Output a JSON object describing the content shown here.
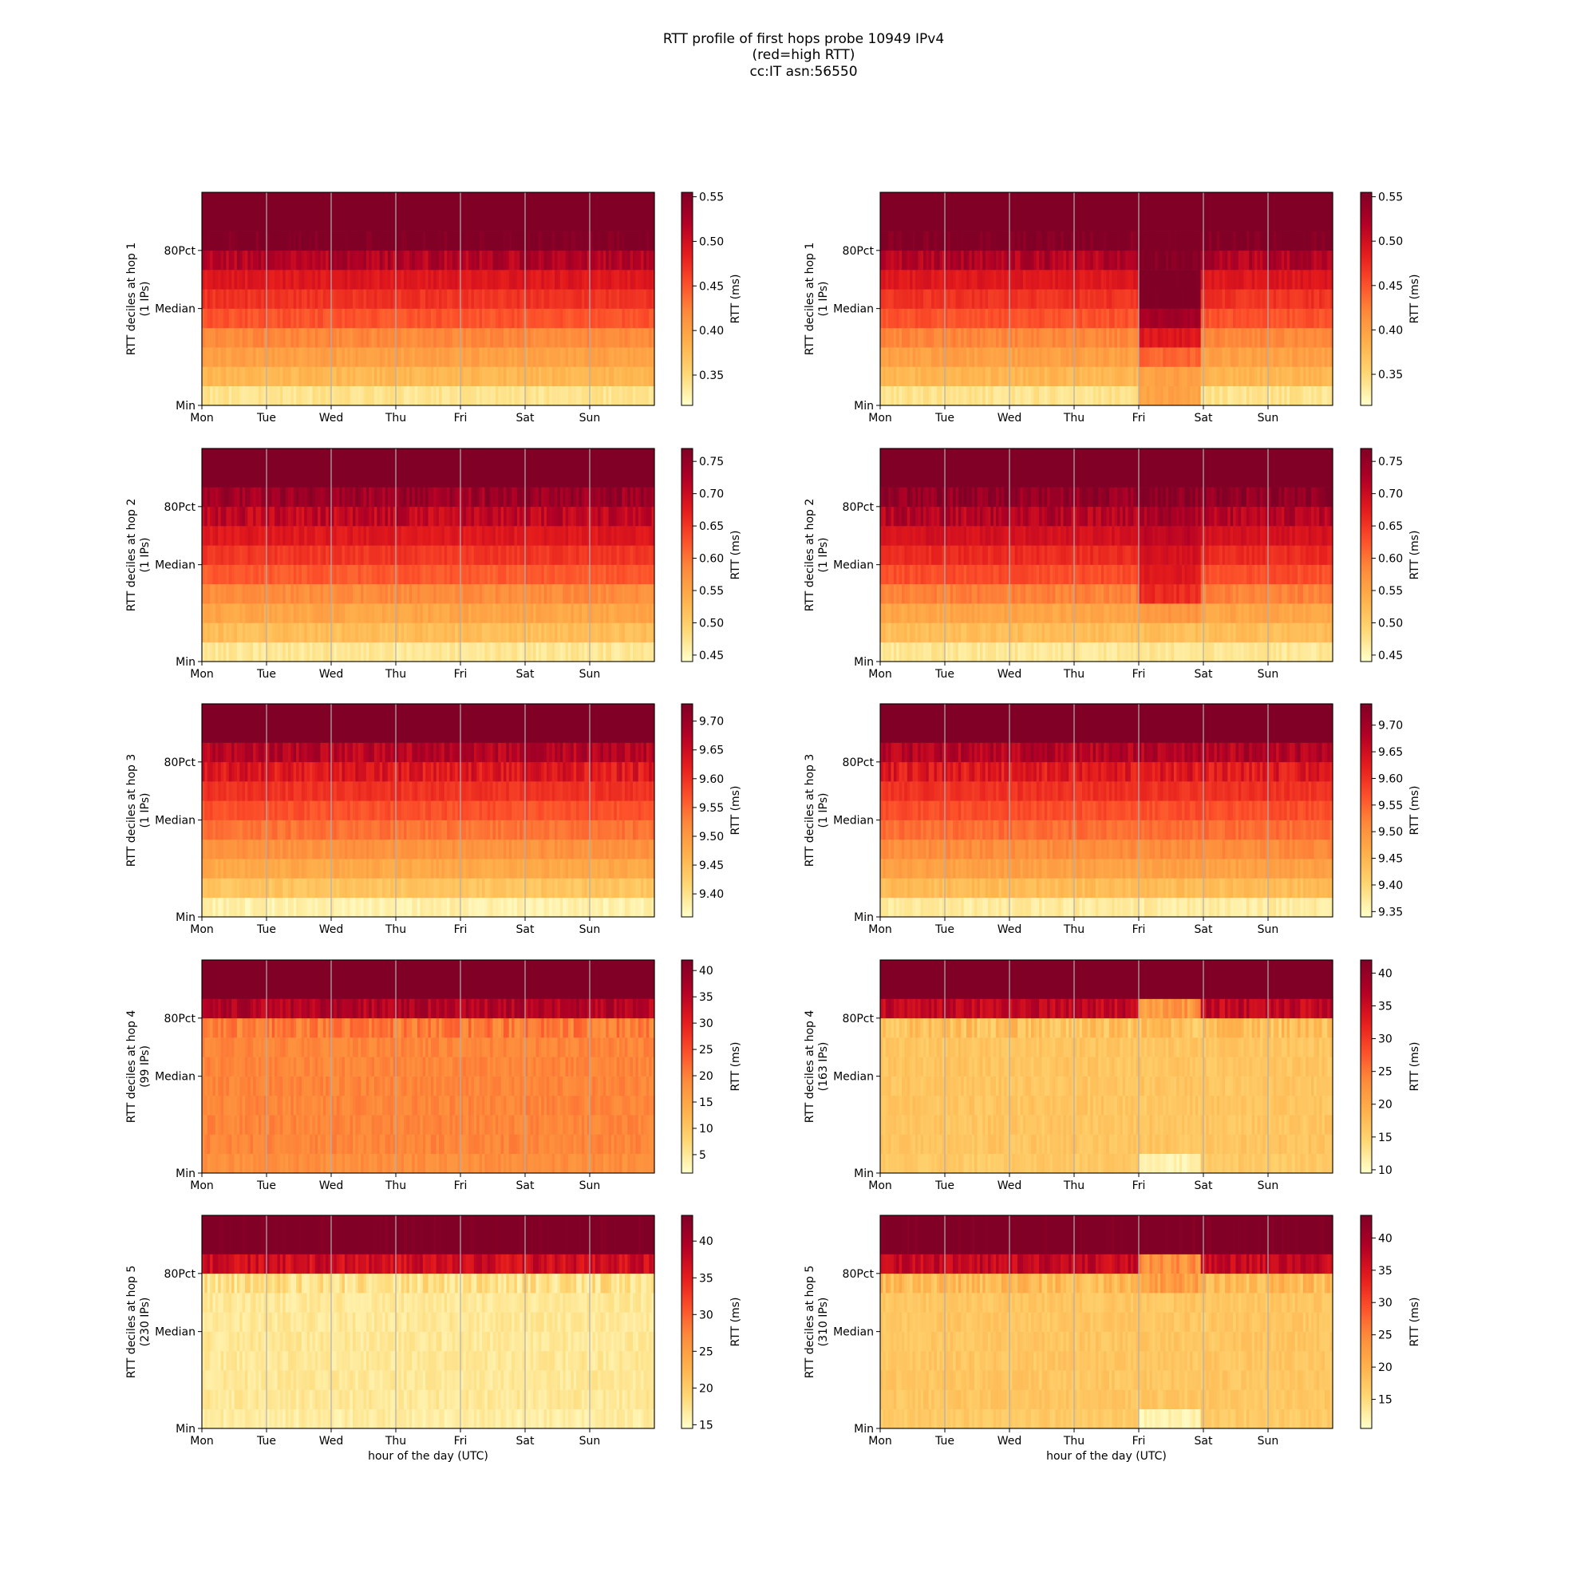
{
  "figure": {
    "title_lines": [
      "RTT profile of first hops probe 10949 IPv4",
      "(red=high RTT)",
      "cc:IT asn:56550"
    ],
    "xlabel": "hour of the day (UTC)",
    "x_ticks": [
      "Mon",
      "Tue",
      "Wed",
      "Thu",
      "Fri",
      "Sat",
      "Sun"
    ],
    "y_ticks": [
      "Min",
      "Median",
      "80Pct"
    ],
    "colorbar_label": "RTT (ms)",
    "colormap": [
      "#ffffcc",
      "#fed976",
      "#feb24c",
      "#fd8d3c",
      "#fc4e2a",
      "#e31a1c",
      "#b10026",
      "#800026"
    ]
  },
  "chart_data": [
    {
      "type": "heatmap",
      "hop": 1,
      "column": "left",
      "ylabel": "RTT deciles at hop 1",
      "ips": "(1 IPs)",
      "cbar_ticks": [
        "0.35",
        "0.40",
        "0.45",
        "0.50",
        "0.55"
      ],
      "cbar_values": [
        0.35,
        0.4,
        0.45,
        0.5,
        0.55
      ],
      "vmin": 0.316,
      "vmax": 0.555,
      "deciles": [
        0.34,
        0.38,
        0.4,
        0.42,
        0.45,
        0.47,
        0.49,
        0.52,
        0.56,
        0.62
      ],
      "anomaly": null
    },
    {
      "type": "heatmap",
      "hop": 1,
      "column": "right",
      "ylabel": "RTT deciles at hop 1",
      "ips": "(1 IPs)",
      "cbar_ticks": [
        "0.35",
        "0.40",
        "0.45",
        "0.50",
        "0.55"
      ],
      "cbar_values": [
        0.35,
        0.4,
        0.45,
        0.5,
        0.55
      ],
      "vmin": 0.315,
      "vmax": 0.555,
      "deciles": [
        0.34,
        0.38,
        0.4,
        0.42,
        0.45,
        0.47,
        0.49,
        0.52,
        0.56,
        0.62
      ],
      "anomaly": {
        "start_day": 4.0,
        "end_day": 4.93,
        "deciles": [
          0.4,
          0.4,
          0.44,
          0.49,
          0.53,
          0.56,
          0.56,
          0.56,
          0.57,
          0.62
        ]
      }
    },
    {
      "type": "heatmap",
      "hop": 2,
      "column": "left",
      "ylabel": "RTT deciles at hop 2",
      "ips": "(1 IPs)",
      "cbar_ticks": [
        "0.45",
        "0.50",
        "0.55",
        "0.60",
        "0.65",
        "0.70",
        "0.75"
      ],
      "cbar_values": [
        0.45,
        0.5,
        0.55,
        0.6,
        0.65,
        0.7,
        0.75
      ],
      "vmin": 0.44,
      "vmax": 0.77,
      "deciles": [
        0.47,
        0.52,
        0.55,
        0.58,
        0.62,
        0.65,
        0.68,
        0.71,
        0.74,
        0.8
      ],
      "anomaly": null
    },
    {
      "type": "heatmap",
      "hop": 2,
      "column": "right",
      "ylabel": "RTT deciles at hop 2",
      "ips": "(1 IPs)",
      "cbar_ticks": [
        "0.45",
        "0.50",
        "0.55",
        "0.60",
        "0.65",
        "0.70",
        "0.75"
      ],
      "cbar_values": [
        0.45,
        0.5,
        0.55,
        0.6,
        0.65,
        0.7,
        0.75
      ],
      "vmin": 0.44,
      "vmax": 0.77,
      "deciles": [
        0.47,
        0.52,
        0.55,
        0.59,
        0.63,
        0.66,
        0.69,
        0.72,
        0.75,
        0.8
      ],
      "anomaly": {
        "start_day": 4.0,
        "end_day": 4.93,
        "deciles": [
          0.47,
          0.52,
          0.57,
          0.66,
          0.68,
          0.69,
          0.71,
          0.73,
          0.76,
          0.8
        ]
      }
    },
    {
      "type": "heatmap",
      "hop": 3,
      "column": "left",
      "ylabel": "RTT deciles at hop 3",
      "ips": "(1 IPs)",
      "cbar_ticks": [
        "9.40",
        "9.45",
        "9.50",
        "9.55",
        "9.60",
        "9.65",
        "9.70"
      ],
      "cbar_values": [
        9.4,
        9.45,
        9.5,
        9.55,
        9.6,
        9.65,
        9.7
      ],
      "vmin": 9.36,
      "vmax": 9.73,
      "deciles": [
        9.38,
        9.44,
        9.48,
        9.51,
        9.54,
        9.57,
        9.6,
        9.63,
        9.67,
        9.76
      ],
      "anomaly": null
    },
    {
      "type": "heatmap",
      "hop": 3,
      "column": "right",
      "ylabel": "RTT deciles at hop 3",
      "ips": "(1 IPs)",
      "cbar_ticks": [
        "9.35",
        "9.40",
        "9.45",
        "9.50",
        "9.55",
        "9.60",
        "9.65",
        "9.70"
      ],
      "cbar_values": [
        9.35,
        9.4,
        9.45,
        9.5,
        9.55,
        9.6,
        9.65,
        9.7
      ],
      "vmin": 9.34,
      "vmax": 9.74,
      "deciles": [
        9.37,
        9.44,
        9.48,
        9.51,
        9.54,
        9.57,
        9.6,
        9.63,
        9.68,
        9.78
      ],
      "anomaly": null
    },
    {
      "type": "heatmap",
      "hop": 4,
      "column": "left",
      "ylabel": "RTT deciles at hop 4",
      "ips": "(99 IPs)",
      "cbar_ticks": [
        "5",
        "10",
        "15",
        "20",
        "25",
        "30",
        "35",
        "40"
      ],
      "cbar_values": [
        5,
        10,
        15,
        20,
        25,
        30,
        35,
        40
      ],
      "vmin": 1.5,
      "vmax": 42,
      "deciles": [
        18.5,
        19.5,
        19.5,
        19.5,
        19.5,
        19.5,
        19.5,
        20.5,
        36,
        45
      ],
      "anomaly": null
    },
    {
      "type": "heatmap",
      "hop": 4,
      "column": "right",
      "ylabel": "RTT deciles at hop 4",
      "ips": "(163 IPs)",
      "cbar_ticks": [
        "10",
        "15",
        "20",
        "25",
        "30",
        "35",
        "40"
      ],
      "cbar_values": [
        10,
        15,
        20,
        25,
        30,
        35,
        40
      ],
      "vmin": 9.5,
      "vmax": 42,
      "deciles": [
        16,
        16.5,
        16.5,
        16.5,
        16.5,
        16.5,
        16.5,
        17,
        36,
        45
      ],
      "anomaly": {
        "start_day": 4.0,
        "end_day": 4.93,
        "deciles": [
          11,
          16.5,
          16.5,
          16.5,
          16.5,
          16.5,
          16.5,
          17,
          22,
          45
        ]
      }
    },
    {
      "type": "heatmap",
      "hop": 5,
      "column": "left",
      "ylabel": "RTT deciles at hop 5",
      "ips": "(230 IPs)",
      "cbar_ticks": [
        "15",
        "20",
        "25",
        "30",
        "35",
        "40"
      ],
      "cbar_values": [
        15,
        20,
        25,
        30,
        35,
        40
      ],
      "vmin": 14.5,
      "vmax": 43.5,
      "deciles": [
        16.5,
        17,
        17,
        17,
        17,
        17,
        17,
        18,
        37,
        45
      ],
      "anomaly": null
    },
    {
      "type": "heatmap",
      "hop": 5,
      "column": "right",
      "ylabel": "RTT deciles at hop 5",
      "ips": "(310 IPs)",
      "cbar_ticks": [
        "15",
        "20",
        "25",
        "30",
        "35",
        "40"
      ],
      "cbar_values": [
        15,
        20,
        25,
        30,
        35,
        40
      ],
      "vmin": 10.5,
      "vmax": 43.5,
      "deciles": [
        17,
        17.5,
        17.5,
        17.5,
        17.5,
        17.5,
        17.5,
        19,
        37,
        45
      ],
      "anomaly": {
        "start_day": 4.0,
        "end_day": 4.93,
        "deciles": [
          12,
          17.5,
          17.5,
          17.5,
          17.5,
          17.5,
          17.5,
          22,
          24,
          45
        ]
      }
    }
  ]
}
